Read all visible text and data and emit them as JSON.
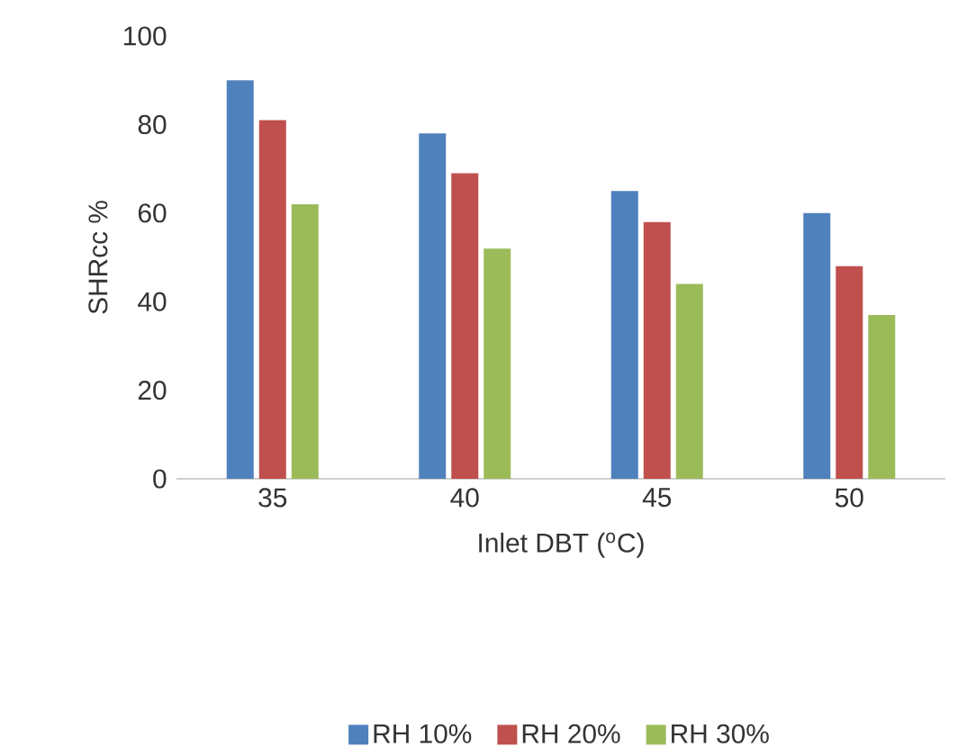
{
  "chart_data": {
    "type": "bar",
    "xlabel": "Inlet DBT  ($^{o}$C)",
    "ylabel": "SHRcc    %",
    "categories": [
      "35",
      "40",
      "45",
      "50"
    ],
    "series": [
      {
        "name": "RH  10%",
        "color": "#4f81bd",
        "values": [
          90,
          78,
          65,
          60
        ]
      },
      {
        "name": "RH 20%",
        "color": "#c0504d",
        "values": [
          81,
          69,
          58,
          48
        ]
      },
      {
        "name": "RH 30%",
        "color": "#9bbb59",
        "values": [
          62,
          52,
          44,
          37
        ]
      }
    ],
    "ylim": [
      0,
      100
    ],
    "yticks": [
      0,
      20,
      40,
      60,
      80,
      100
    ],
    "grid": false,
    "legend": "bottom"
  }
}
